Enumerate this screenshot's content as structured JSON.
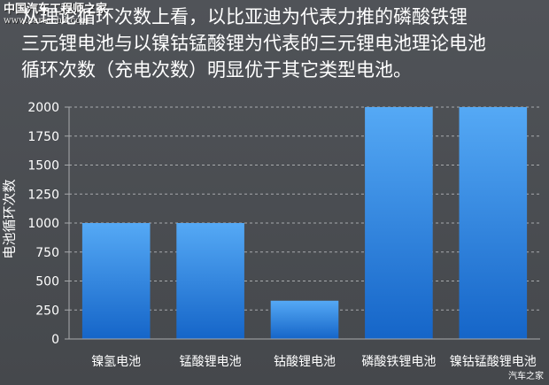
{
  "watermark": {
    "site_name": "中国汽车工程师之家",
    "url": "www.cartech8.com"
  },
  "headline": {
    "line1": "从理论循环次数上看，以比亚迪为代表力推的磷酸铁锂",
    "line2": "三元锂电池与以镍钴锰酸锂为代表的三元锂电池理论电池",
    "line3": "循环次数（充电次数）明显优于其它类型电池。"
  },
  "credit": "汽车之家",
  "colors": {
    "bar_top": "#55a9f5",
    "bar_bottom": "#1565c8",
    "background": "#4a4d52",
    "grid": "#a8aaad",
    "text": "#ffffff"
  },
  "chart_data": {
    "type": "bar",
    "title": "",
    "xlabel": "",
    "ylabel": "电池循环次数",
    "categories": [
      "镍氢电池",
      "锰酸锂电池",
      "钴酸锂电池",
      "磷酸铁锂电池",
      "镍钴锰酸锂电池"
    ],
    "values": [
      1000,
      1000,
      330,
      2000,
      2000
    ],
    "ylim": [
      0,
      2000
    ],
    "yticks": [
      0,
      250,
      500,
      750,
      1000,
      1250,
      1500,
      1750,
      2000
    ],
    "ytick_labels": [
      "0",
      "250",
      "500",
      "750",
      "1000",
      "1250",
      "1500",
      "1750",
      "2000"
    ],
    "grid": "horizontal dashed",
    "legend": "none"
  }
}
